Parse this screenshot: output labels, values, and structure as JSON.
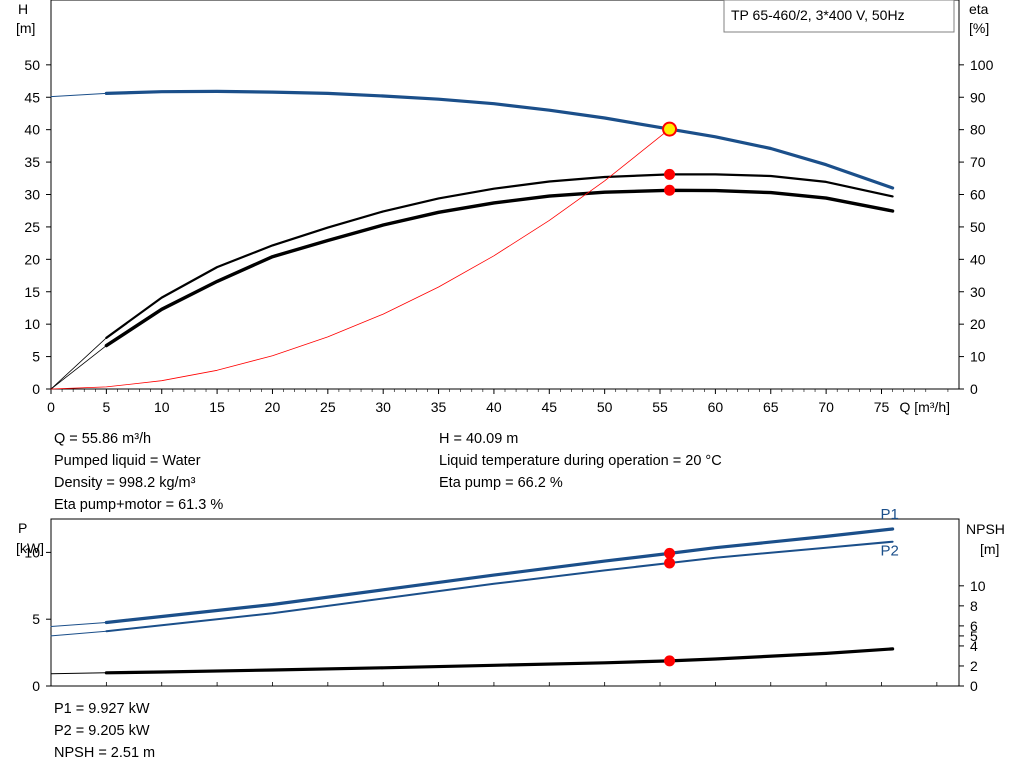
{
  "pump_model": "TP 65-460/2, 3*400 V, 50Hz",
  "colors": {
    "head": "#1b4f8a",
    "efficiency": "#000000",
    "system": "#ff0000",
    "power": "#1b4f8a",
    "npsh": "#000000",
    "duty_marker": "#ff0000",
    "duty_marker_head": "#ffee00"
  },
  "readouts_top": {
    "left": [
      "Q = 55.86 m³/h",
      "Pumped liquid = Water",
      "Density = 998.2 kg/m³",
      "Eta pump+motor = 61.3 %"
    ],
    "right": [
      "H = 40.09 m",
      "Liquid temperature during operation = 20 °C",
      "Eta pump = 66.2 %"
    ]
  },
  "readouts_bottom": [
    "P1 = 9.927 kW",
    "P2 = 9.205 kW",
    "NPSH = 2.51 m"
  ],
  "chart_data": [
    {
      "type": "line",
      "axes": {
        "x": {
          "label": "Q [m³/h]",
          "range": [
            0,
            82
          ],
          "ticks": [
            0,
            5,
            10,
            15,
            20,
            25,
            30,
            35,
            40,
            45,
            50,
            55,
            60,
            65,
            70,
            75
          ]
        },
        "y_left": {
          "label_top": "H",
          "label_unit": "[m]",
          "range": [
            0,
            60
          ],
          "ticks": [
            0,
            5,
            10,
            15,
            20,
            25,
            30,
            35,
            40,
            45,
            50
          ]
        },
        "y_right": {
          "label_top": "eta",
          "label_unit": "[%]",
          "range": [
            0,
            120
          ],
          "ticks": [
            0,
            10,
            20,
            30,
            40,
            50,
            60,
            70,
            80,
            90,
            100
          ]
        }
      },
      "grid": false,
      "series": [
        {
          "key": "head",
          "axis": "left",
          "x": [
            5,
            10,
            15,
            20,
            25,
            30,
            35,
            40,
            45,
            50,
            55.86,
            60,
            65,
            70,
            76
          ],
          "y": [
            45.6,
            45.85,
            45.9,
            45.8,
            45.6,
            45.2,
            44.7,
            44.0,
            43.0,
            41.8,
            40.09,
            38.9,
            37.1,
            34.6,
            31.0
          ]
        },
        {
          "key": "head_extrapolated",
          "axis": "left",
          "x": [
            0,
            5
          ],
          "y": [
            45.1,
            45.6
          ]
        },
        {
          "key": "eta_pump",
          "axis": "right",
          "x": [
            5,
            10,
            15,
            20,
            25,
            30,
            35,
            40,
            45,
            50,
            55.86,
            60,
            65,
            70,
            76
          ],
          "y": [
            15.8,
            28.2,
            37.6,
            44.3,
            49.8,
            54.8,
            58.8,
            61.8,
            64.0,
            65.4,
            66.2,
            66.2,
            65.7,
            63.9,
            59.4
          ]
        },
        {
          "key": "eta_pump_motor",
          "axis": "right",
          "x": [
            5,
            10,
            15,
            20,
            25,
            30,
            35,
            40,
            45,
            50,
            55.86,
            60,
            65,
            70,
            76
          ],
          "y": [
            13.4,
            24.6,
            33.2,
            40.8,
            45.8,
            50.6,
            54.5,
            57.4,
            59.5,
            60.7,
            61.3,
            61.2,
            60.6,
            58.9,
            54.9
          ]
        },
        {
          "key": "eta_pump_extrapolated",
          "axis": "right",
          "x": [
            0,
            5
          ],
          "y": [
            0,
            15.8
          ]
        },
        {
          "key": "eta_pump_motor_extrapolated",
          "axis": "right",
          "x": [
            0,
            5
          ],
          "y": [
            0,
            13.4
          ]
        },
        {
          "key": "system_curve",
          "axis": "left",
          "x": [
            0,
            5,
            10,
            15,
            20,
            25,
            30,
            35,
            40,
            45,
            50,
            55.86
          ],
          "y": [
            0,
            0.32,
            1.28,
            2.89,
            5.14,
            8.03,
            11.56,
            15.74,
            20.55,
            26.01,
            32.11,
            40.09
          ]
        }
      ],
      "duty_points": [
        {
          "key": "head",
          "axis": "left",
          "x": 55.86,
          "y": 40.09
        },
        {
          "key": "eta_pump",
          "axis": "right",
          "x": 55.86,
          "y": 66.2
        },
        {
          "key": "eta_pump_motor",
          "axis": "right",
          "x": 55.86,
          "y": 61.3
        }
      ]
    },
    {
      "type": "line",
      "axes": {
        "x": {
          "label": "",
          "range": [
            0,
            82
          ]
        },
        "y_left": {
          "label_top": "P",
          "label_unit": "[kW]",
          "range": [
            0,
            12.5
          ],
          "ticks": [
            0,
            5,
            10
          ]
        },
        "y_right": {
          "label_top": "NPSH",
          "label_unit": "[m]",
          "range": [
            0,
            16.67
          ],
          "ticks": [
            0,
            2,
            4,
            5,
            6,
            8,
            10
          ]
        }
      },
      "grid": false,
      "series": [
        {
          "key": "P1",
          "name": "P1",
          "axis": "left",
          "x": [
            5,
            10,
            20,
            30,
            40,
            50,
            55.86,
            60,
            70,
            76
          ],
          "y": [
            4.75,
            5.2,
            6.1,
            7.2,
            8.3,
            9.35,
            9.927,
            10.35,
            11.2,
            11.75
          ]
        },
        {
          "key": "P2",
          "name": "P2",
          "axis": "left",
          "x": [
            5,
            10,
            20,
            30,
            40,
            50,
            55.86,
            60,
            70,
            76
          ],
          "y": [
            4.1,
            4.55,
            5.45,
            6.55,
            7.65,
            8.65,
            9.205,
            9.6,
            10.35,
            10.8
          ]
        },
        {
          "key": "P1_extrapolated",
          "axis": "left",
          "x": [
            0,
            5
          ],
          "y": [
            4.45,
            4.75
          ]
        },
        {
          "key": "P2_extrapolated",
          "axis": "left",
          "x": [
            0,
            5
          ],
          "y": [
            3.75,
            4.1
          ]
        },
        {
          "key": "NPSH",
          "name": "NPSH",
          "axis": "right",
          "x": [
            5,
            10,
            20,
            30,
            40,
            50,
            55.86,
            60,
            70,
            76
          ],
          "y": [
            1.32,
            1.4,
            1.6,
            1.82,
            2.07,
            2.32,
            2.51,
            2.7,
            3.25,
            3.7
          ]
        },
        {
          "key": "NPSH_extrapolated",
          "axis": "right",
          "x": [
            0,
            5
          ],
          "y": [
            1.22,
            1.32
          ]
        }
      ],
      "duty_points": [
        {
          "key": "P1",
          "axis": "left",
          "x": 55.86,
          "y": 9.927
        },
        {
          "key": "P2",
          "axis": "left",
          "x": 55.86,
          "y": 9.205
        },
        {
          "key": "NPSH",
          "axis": "right",
          "x": 55.86,
          "y": 2.51
        }
      ]
    }
  ]
}
